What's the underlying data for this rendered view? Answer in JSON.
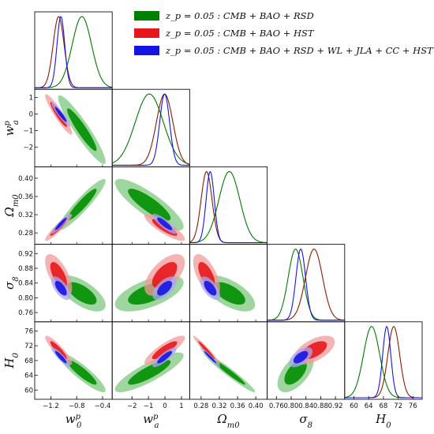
{
  "legend": [
    {
      "label": "z_p = 0.05 : CMB + BAO + RSD",
      "color": "#008000"
    },
    {
      "label": "z_p = 0.05 : CMB + BAO + HST",
      "color": "#e8161b"
    },
    {
      "label": "z_p = 0.05 : CMB + BAO + RSD + WL + JLA + CC + HST",
      "color": "#1414e6"
    }
  ],
  "chart_data": {
    "type": "triangle",
    "parameters": [
      {
        "key": "w0",
        "label": "w_0^p",
        "range": [
          -1.45,
          -0.25
        ],
        "ticks": [
          -1.2,
          -0.8,
          -0.4
        ],
        "tick_labels": [
          "−1.2",
          "−0.8",
          "−0.4"
        ]
      },
      {
        "key": "wa",
        "label": "w_a^p",
        "range": [
          -3.2,
          1.5
        ],
        "ticks": [
          -2,
          -1,
          0,
          1
        ],
        "tick_labels": [
          "−2",
          "−1",
          "0",
          "1"
        ],
        "yticks": [
          -2,
          -1,
          0,
          1
        ],
        "ytick_labels": [
          "−2",
          "−1",
          "0",
          "1"
        ]
      },
      {
        "key": "om",
        "label": "Ω_m0",
        "range": [
          0.255,
          0.425
        ],
        "ticks": [
          0.28,
          0.32,
          0.36,
          0.4
        ],
        "tick_labels": [
          "0.28",
          "0.32",
          "0.36",
          "0.40"
        ],
        "yticks": [
          0.28,
          0.32,
          0.36,
          0.4
        ],
        "ytick_labels": [
          "0.28",
          "0.32",
          "0.36",
          "0.40"
        ]
      },
      {
        "key": "s8",
        "label": "σ_8",
        "range": [
          0.735,
          0.945
        ],
        "ticks": [
          0.76,
          0.8,
          0.84,
          0.88,
          0.92
        ],
        "tick_labels": [
          "0.76",
          "0.80",
          "0.84",
          "0.88",
          "0.92"
        ],
        "yticks": [
          0.76,
          0.8,
          0.84,
          0.88,
          0.92
        ],
        "ytick_labels": [
          "0.76",
          "0.80",
          "0.84",
          "0.88",
          "0.92"
        ]
      },
      {
        "key": "h0",
        "label": "H_0",
        "range": [
          57.5,
          78.5
        ],
        "ticks": [
          60,
          64,
          68,
          72,
          76
        ],
        "tick_labels": [
          "60",
          "64",
          "68",
          "72",
          "76"
        ],
        "yticks": [
          60,
          64,
          68,
          72,
          76
        ],
        "ytick_labels": [
          "60",
          "64",
          "68",
          "72",
          "76"
        ]
      }
    ],
    "series": [
      {
        "name": "z_p = 0.05 : CMB + BAO + RSD",
        "line_color": "#007a00",
        "fill1": "#008f00",
        "fill2": "#7fc87f",
        "mean": {
          "w0": -0.72,
          "wa": -0.95,
          "om": 0.342,
          "s8": 0.812,
          "h0": 64.8
        },
        "sigma": {
          "w0": 0.15,
          "wa": 0.85,
          "om": 0.023,
          "s8": 0.02,
          "h0": 2.2
        }
      },
      {
        "name": "z_p = 0.05 : CMB + BAO + HST",
        "line_color": "#8b1a00",
        "fill1": "#e8161b",
        "fill2": "#f1999b",
        "mean": {
          "w0": -1.08,
          "wa": -0.02,
          "om": 0.292,
          "s8": 0.862,
          "h0": 70.8
        },
        "sigma": {
          "w0": 0.085,
          "wa": 0.5,
          "om": 0.012,
          "s8": 0.023,
          "h0": 1.6
        }
      },
      {
        "name": "z_p = 0.05 : CMB + BAO + RSD + WL + JLA + CC + HST",
        "line_color": "#1414e6",
        "fill1": "#1414e6",
        "fill2": "#a8a8f2",
        "mean": {
          "w0": -1.045,
          "wa": -0.02,
          "om": 0.3,
          "s8": 0.826,
          "h0": 68.9
        },
        "sigma": {
          "w0": 0.06,
          "wa": 0.3,
          "om": 0.009,
          "s8": 0.013,
          "h0": 1.1
        }
      }
    ],
    "correlations": {
      "w0_wa": -0.93,
      "w0_om": 0.93,
      "w0_s8": -0.65,
      "w0_h0": -0.9,
      "wa_om": -0.85,
      "wa_s8": 0.6,
      "wa_h0": 0.85,
      "om_s8": -0.62,
      "om_h0": -0.97,
      "s8_h0": 0.58
    }
  }
}
